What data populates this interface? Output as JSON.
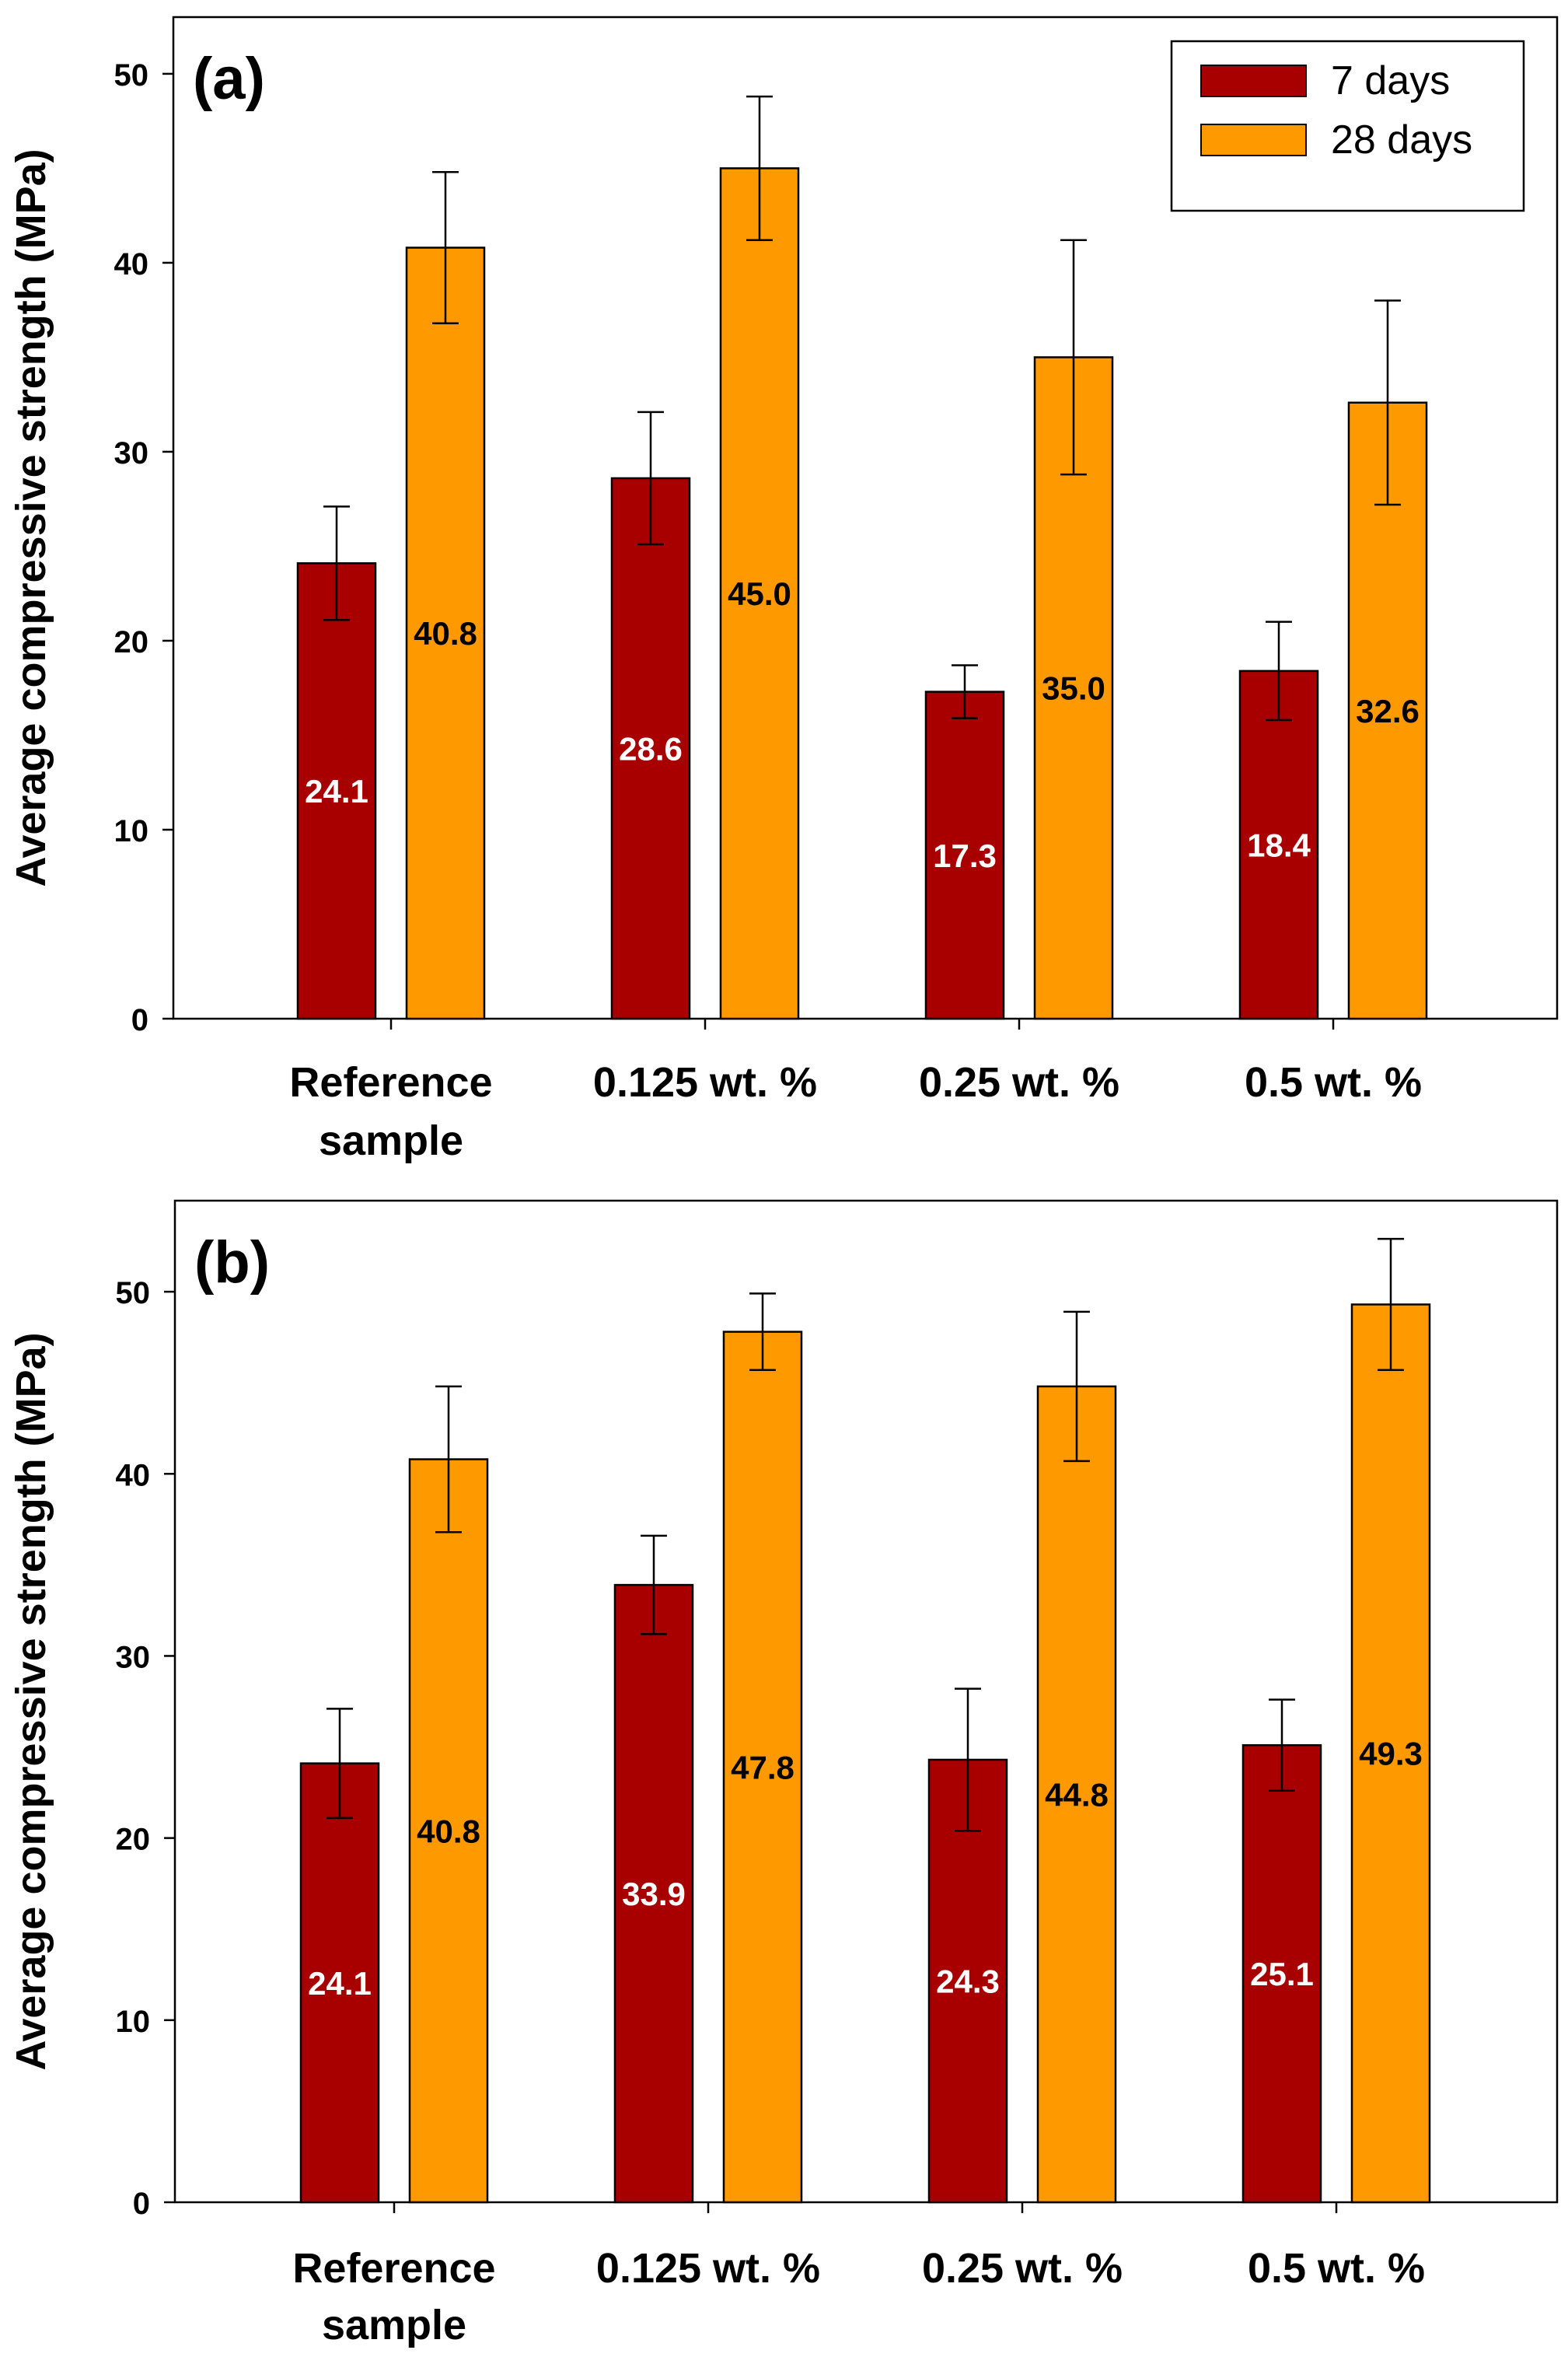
{
  "colors": {
    "series_7_days": "#a80000",
    "series_28_days": "#ff9900",
    "axis": "#000000",
    "label_on_dark": "#ffffff",
    "label_default": "#000000"
  },
  "chart_data": [
    {
      "type": "bar",
      "panel_label": "(a)",
      "ylabel": "Average compressive strength (MPa)",
      "xlabel": "",
      "ylim": [
        0,
        53
      ],
      "yticks": [
        0,
        10,
        20,
        30,
        40,
        50
      ],
      "categories": [
        [
          "Reference",
          "sample"
        ],
        [
          "0.125 wt. %"
        ],
        [
          "0.25 wt. %"
        ],
        [
          "0.5 wt. %"
        ]
      ],
      "series": [
        {
          "name": "7 days",
          "values": [
            24.1,
            28.6,
            17.3,
            18.4
          ],
          "errors": [
            3.0,
            3.5,
            1.4,
            2.6
          ],
          "labels": [
            "24.1",
            "28.6",
            "17.3",
            "18.4"
          ]
        },
        {
          "name": "28 days",
          "values": [
            40.8,
            45.0,
            35.0,
            32.6
          ],
          "errors": [
            4.0,
            3.8,
            6.2,
            5.4
          ],
          "labels": [
            "40.8",
            "45.0",
            "35.0",
            "32.6"
          ]
        }
      ],
      "legend": {
        "position": "top-right",
        "entries": [
          "7 days",
          "28 days"
        ]
      },
      "grid": false
    },
    {
      "type": "bar",
      "panel_label": "(b)",
      "ylabel": "Average compressive strength (MPa)",
      "xlabel": "",
      "ylim": [
        0,
        55
      ],
      "yticks": [
        0,
        10,
        20,
        30,
        40,
        50
      ],
      "categories": [
        [
          "Reference",
          "sample"
        ],
        [
          "0.125 wt. %"
        ],
        [
          "0.25 wt. %"
        ],
        [
          "0.5 wt. %"
        ]
      ],
      "series": [
        {
          "name": "7 days",
          "values": [
            24.1,
            33.9,
            24.3,
            25.1
          ],
          "errors": [
            3.0,
            2.7,
            3.9,
            2.5
          ],
          "labels": [
            "24.1",
            "33.9",
            "24.3",
            "25.1"
          ]
        },
        {
          "name": "28 days",
          "values": [
            40.8,
            47.8,
            44.8,
            49.3
          ],
          "errors": [
            4.0,
            2.1,
            4.1,
            3.6
          ],
          "labels": [
            "40.8",
            "47.8",
            "44.8",
            "49.3"
          ]
        }
      ],
      "grid": false
    }
  ]
}
